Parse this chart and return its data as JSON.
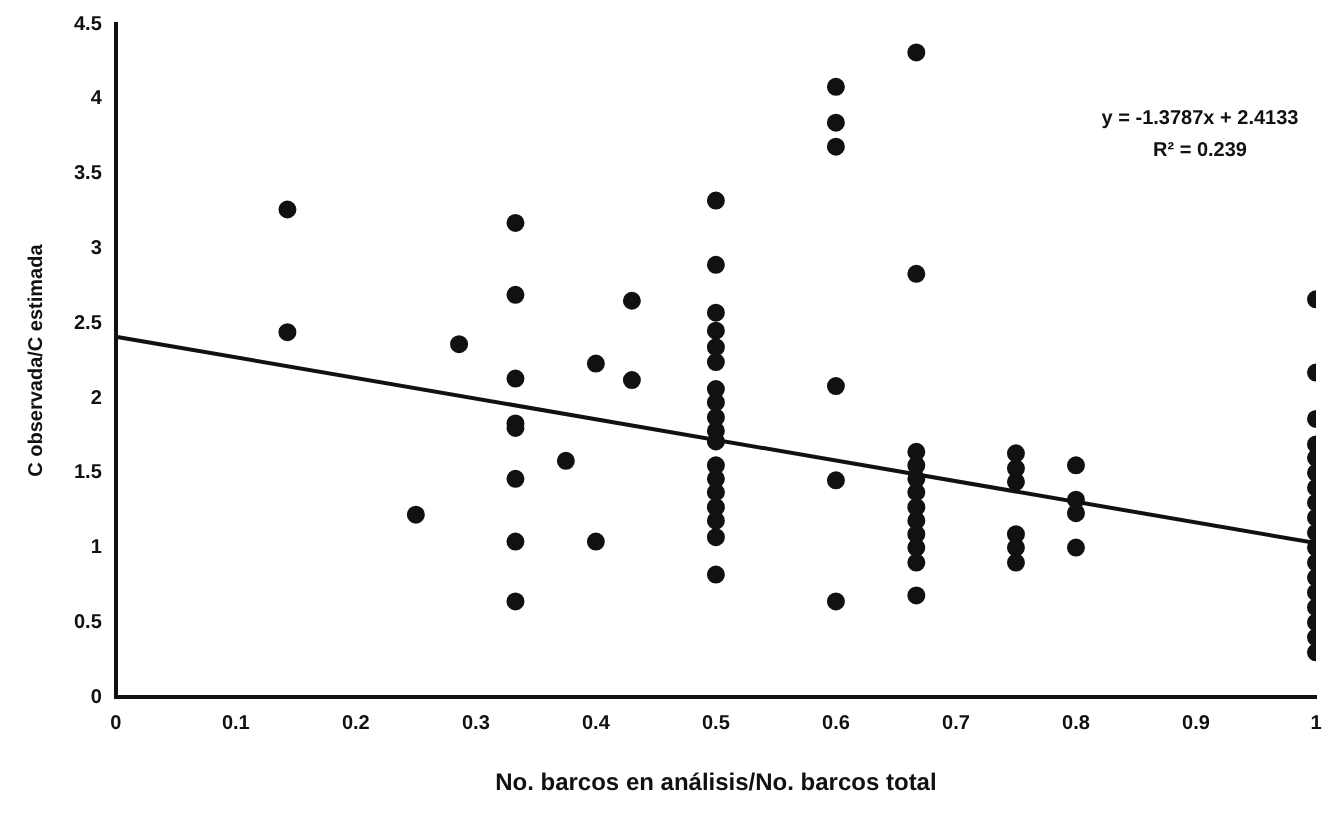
{
  "chart_data": {
    "type": "scatter",
    "xlabel": "No. barcos en análisis/No. barcos total",
    "ylabel": "C observada/C estimada",
    "xlim": [
      0,
      1
    ],
    "xticks": [
      0,
      0.1,
      0.2,
      0.3,
      0.4,
      0.5,
      0.6,
      0.7,
      0.8,
      0.9,
      1
    ],
    "ylim": [
      0,
      4.5
    ],
    "yticks": [
      0,
      0.5,
      1,
      1.5,
      2,
      2.5,
      3,
      3.5,
      4,
      4.5
    ],
    "grid": false,
    "legend": false,
    "marker": "circle",
    "annotations": [
      "y = -1.3787x + 2.4133",
      "R² = 0.239"
    ],
    "series": [
      {
        "type": "scatter",
        "color": "#111111",
        "x": [
          0.143,
          0.143,
          0.25,
          0.286,
          0.333,
          0.333,
          0.333,
          0.333,
          0.333,
          0.333,
          0.333,
          0.333,
          0.375,
          0.4,
          0.4,
          0.43,
          0.43,
          0.5,
          0.5,
          0.5,
          0.5,
          0.5,
          0.5,
          0.5,
          0.5,
          0.5,
          0.5,
          0.5,
          0.5,
          0.5,
          0.5,
          0.5,
          0.5,
          0.5,
          0.5,
          0.6,
          0.6,
          0.6,
          0.6,
          0.6,
          0.6,
          0.667,
          0.667,
          0.667,
          0.667,
          0.667,
          0.667,
          0.667,
          0.667,
          0.667,
          0.667,
          0.667,
          0.667,
          0.75,
          0.75,
          0.75,
          0.75,
          0.75,
          0.75,
          0.8,
          0.8,
          0.8,
          0.8,
          1,
          1,
          1,
          1,
          1,
          1,
          1,
          1,
          1,
          1,
          1,
          1,
          1,
          1,
          1,
          1,
          1,
          1
        ],
        "values": [
          3.26,
          2.44,
          1.22,
          2.36,
          3.17,
          2.69,
          2.13,
          1.83,
          1.8,
          1.46,
          1.04,
          0.64,
          1.58,
          2.23,
          1.04,
          2.65,
          2.12,
          3.32,
          2.89,
          2.57,
          2.45,
          2.34,
          2.24,
          2.06,
          1.97,
          1.87,
          1.78,
          1.71,
          1.55,
          1.46,
          1.37,
          1.27,
          1.18,
          1.07,
          0.82,
          4.08,
          3.84,
          3.68,
          2.08,
          1.45,
          0.64,
          4.31,
          2.83,
          1.64,
          1.55,
          1.46,
          1.37,
          1.27,
          1.18,
          1.09,
          1,
          0.9,
          0.68,
          1.63,
          1.53,
          1.44,
          1.09,
          1,
          0.9,
          1.55,
          1.32,
          1.23,
          1,
          2.66,
          2.17,
          1.86,
          1.69,
          1.6,
          1.5,
          1.4,
          1.3,
          1.2,
          1.1,
          1,
          0.9,
          0.8,
          0.7,
          0.6,
          0.5,
          0.4,
          0.3
        ]
      },
      {
        "type": "line",
        "color": "#111111",
        "x": [
          0,
          1
        ],
        "values": [
          2.41,
          1.03
        ],
        "marker": "none"
      }
    ]
  }
}
